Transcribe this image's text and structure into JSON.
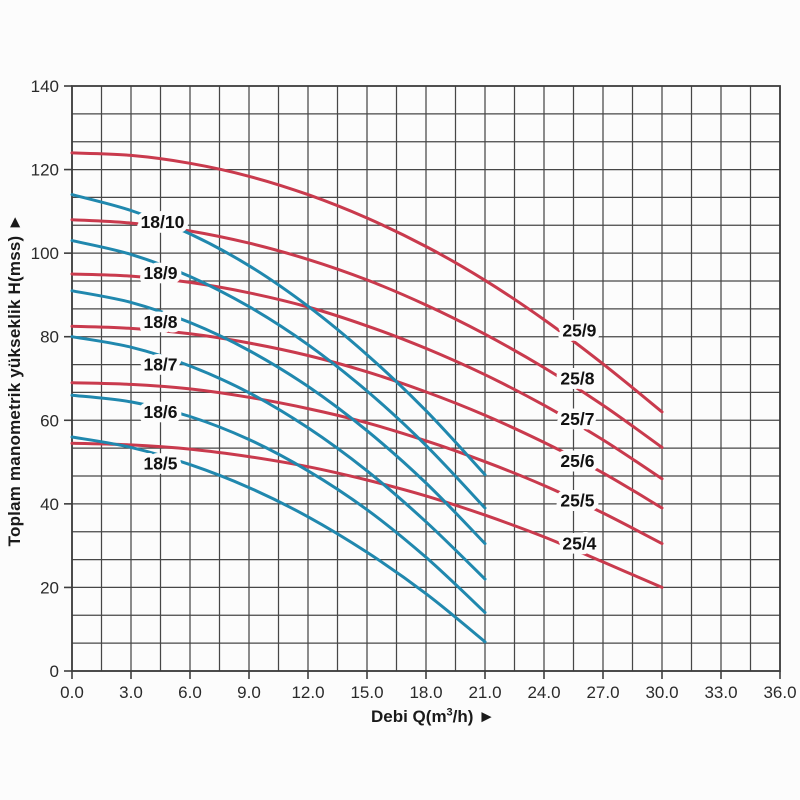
{
  "chart_data": {
    "type": "line",
    "title": "",
    "xlabel": "Debi Q(m³/h) ►",
    "xlabel_parts": {
      "prefix": "Debi Q(m",
      "sup": "3",
      "suffix": "/h) ►"
    },
    "ylabel": "Toplam manometrik yükseklik H(mss) ►",
    "xlim": [
      0,
      36
    ],
    "ylim": [
      0,
      140
    ],
    "grid": {
      "x_step": 1.5,
      "y_step": 6.6667,
      "on": true,
      "color": "#474747"
    },
    "x_ticks": {
      "values": [
        0,
        3,
        6,
        9,
        12,
        15,
        18,
        21,
        24,
        27,
        30,
        33,
        36
      ],
      "labels": [
        "0.0",
        "3.0",
        "6.0",
        "9.0",
        "12.0",
        "15.0",
        "18.0",
        "21.0",
        "24.0",
        "27.0",
        "30.0",
        "33.0",
        "36.0"
      ]
    },
    "y_ticks": {
      "values": [
        0,
        20,
        40,
        60,
        80,
        100,
        120,
        140
      ],
      "labels": [
        "0",
        "20",
        "40",
        "60",
        "80",
        "100",
        "120",
        "140"
      ]
    },
    "colors": {
      "red": "#c93a4d",
      "blue": "#2088ae",
      "label_text": "#111111",
      "tick_text": "#2a2a2a",
      "axis": "#3d3d3d"
    },
    "legend_position": "labels-on-curves",
    "series": [
      {
        "name": "25/9",
        "color": "red",
        "label_pos": [
          25.8,
          81.5
        ],
        "points": [
          [
            0,
            124
          ],
          [
            3,
            123.4
          ],
          [
            6,
            121.5
          ],
          [
            9,
            118.4
          ],
          [
            12,
            114
          ],
          [
            15,
            108.4
          ],
          [
            18,
            101.6
          ],
          [
            21,
            93.5
          ],
          [
            24,
            84.1
          ],
          [
            27,
            73.5
          ],
          [
            30,
            62
          ]
        ]
      },
      {
        "name": "25/8",
        "color": "red",
        "label_pos": [
          25.7,
          70
        ],
        "points": [
          [
            0,
            108
          ],
          [
            3,
            107.2
          ],
          [
            6,
            105.3
          ],
          [
            9,
            102.4
          ],
          [
            12,
            98.5
          ],
          [
            15,
            93.6
          ],
          [
            18,
            87.6
          ],
          [
            21,
            80.6
          ],
          [
            24,
            72.6
          ],
          [
            27,
            63.6
          ],
          [
            30,
            53.5
          ]
        ]
      },
      {
        "name": "25/7",
        "color": "red",
        "label_pos": [
          25.7,
          60.3
        ],
        "points": [
          [
            0,
            95
          ],
          [
            3,
            94.5
          ],
          [
            6,
            93
          ],
          [
            9,
            90.5
          ],
          [
            12,
            87.1
          ],
          [
            15,
            82.6
          ],
          [
            18,
            77.2
          ],
          [
            21,
            70.9
          ],
          [
            24,
            63.6
          ],
          [
            27,
            55.3
          ],
          [
            30,
            46
          ]
        ]
      },
      {
        "name": "25/6",
        "color": "red",
        "label_pos": [
          25.7,
          50.2
        ],
        "points": [
          [
            0,
            82.5
          ],
          [
            3,
            82
          ],
          [
            6,
            80.7
          ],
          [
            9,
            78.5
          ],
          [
            12,
            75.5
          ],
          [
            15,
            71.6
          ],
          [
            18,
            66.8
          ],
          [
            21,
            61.2
          ],
          [
            24,
            54.7
          ],
          [
            27,
            47.4
          ],
          [
            30,
            39
          ]
        ]
      },
      {
        "name": "25/5",
        "color": "red",
        "label_pos": [
          25.7,
          40.8
        ],
        "points": [
          [
            0,
            69
          ],
          [
            3,
            68.6
          ],
          [
            6,
            67.5
          ],
          [
            9,
            65.5
          ],
          [
            12,
            62.8
          ],
          [
            15,
            59.4
          ],
          [
            18,
            55.1
          ],
          [
            21,
            50.1
          ],
          [
            24,
            44.4
          ],
          [
            27,
            37.8
          ],
          [
            30,
            30.5
          ]
        ]
      },
      {
        "name": "25/4",
        "color": "red",
        "label_pos": [
          25.8,
          30.5
        ],
        "points": [
          [
            0,
            54.5
          ],
          [
            3,
            54.1
          ],
          [
            6,
            53.1
          ],
          [
            9,
            51.3
          ],
          [
            12,
            48.9
          ],
          [
            15,
            45.7
          ],
          [
            18,
            41.9
          ],
          [
            21,
            37.3
          ],
          [
            24,
            32.1
          ],
          [
            27,
            26.1
          ],
          [
            30,
            20
          ]
        ]
      },
      {
        "name": "18/10",
        "color": "blue",
        "label_pos": [
          4.6,
          107.5
        ],
        "points": [
          [
            0,
            114
          ],
          [
            3,
            110.2
          ],
          [
            6,
            104.6
          ],
          [
            9,
            97
          ],
          [
            12,
            87.3
          ],
          [
            15,
            75.7
          ],
          [
            18,
            62.3
          ],
          [
            21,
            47
          ]
        ]
      },
      {
        "name": "18/9",
        "color": "blue",
        "label_pos": [
          4.5,
          95.2
        ],
        "points": [
          [
            0,
            103
          ],
          [
            3,
            99.7
          ],
          [
            6,
            94.4
          ],
          [
            9,
            87.2
          ],
          [
            12,
            78.1
          ],
          [
            15,
            67
          ],
          [
            18,
            54
          ],
          [
            21,
            39
          ]
        ]
      },
      {
        "name": "18/8",
        "color": "blue",
        "label_pos": [
          4.5,
          83.5
        ],
        "points": [
          [
            0,
            91
          ],
          [
            3,
            88.2
          ],
          [
            6,
            83.4
          ],
          [
            9,
            76.7
          ],
          [
            12,
            68.1
          ],
          [
            15,
            57.5
          ],
          [
            18,
            45
          ],
          [
            21,
            30.5
          ]
        ]
      },
      {
        "name": "18/7",
        "color": "blue",
        "label_pos": [
          4.5,
          73.3
        ],
        "points": [
          [
            0,
            80
          ],
          [
            3,
            77.5
          ],
          [
            6,
            73
          ],
          [
            9,
            66.6
          ],
          [
            12,
            58.2
          ],
          [
            15,
            47.9
          ],
          [
            18,
            35.7
          ],
          [
            21,
            22
          ]
        ]
      },
      {
        "name": "18/6",
        "color": "blue",
        "label_pos": [
          4.5,
          62
        ],
        "points": [
          [
            0,
            66
          ],
          [
            3,
            64.4
          ],
          [
            6,
            60.9
          ],
          [
            9,
            55.4
          ],
          [
            12,
            47.9
          ],
          [
            15,
            38.6
          ],
          [
            18,
            27.2
          ],
          [
            21,
            14
          ]
        ]
      },
      {
        "name": "18/5",
        "color": "blue",
        "label_pos": [
          4.5,
          49.7
        ],
        "points": [
          [
            0,
            56
          ],
          [
            3,
            53.5
          ],
          [
            6,
            49.4
          ],
          [
            9,
            43.9
          ],
          [
            12,
            36.9
          ],
          [
            15,
            28.4
          ],
          [
            18,
            18.5
          ],
          [
            21,
            7
          ]
        ]
      }
    ]
  }
}
